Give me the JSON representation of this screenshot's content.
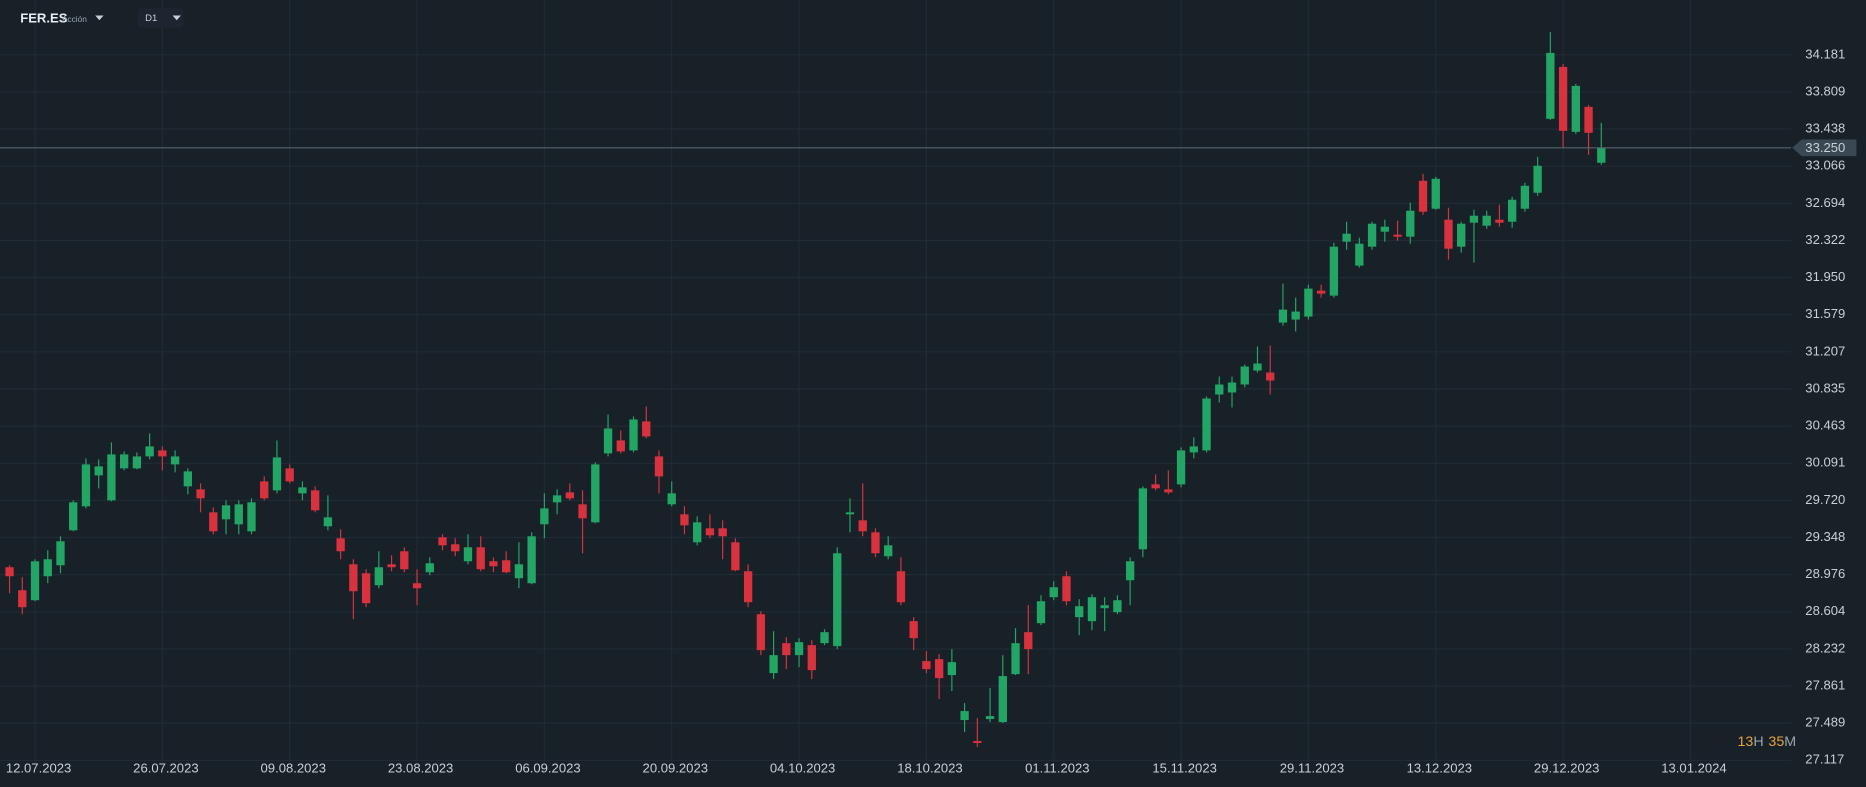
{
  "chart_data": {
    "type": "candlestick",
    "symbol": "FER.ES",
    "instrument_type": "Acción",
    "timeframe": "D1",
    "up_color": "#22a565",
    "down_color": "#d8323f",
    "grid": true,
    "open": [
      29.05,
      28.82,
      28.72,
      28.96,
      29.07,
      29.42,
      29.66,
      29.97,
      29.72,
      30.04,
      30.04,
      30.16,
      30.22,
      30.08,
      29.86,
      29.83,
      29.6,
      29.53,
      29.48,
      29.41,
      29.91,
      29.82,
      30.04,
      29.79,
      29.82,
      29.46,
      29.34,
      29.08,
      28.99,
      28.87,
      29.08,
      29.21,
      28.89,
      29.0,
      29.35,
      29.28,
      29.11,
      29.25,
      29.11,
      29.12,
      28.94,
      28.89,
      29.48,
      29.7,
      29.8,
      29.68,
      29.5,
      30.19,
      30.32,
      30.22,
      30.51,
      30.16,
      29.68,
      29.58,
      29.3,
      29.44,
      29.44,
      29.3,
      29.01,
      28.58,
      27.99,
      28.29,
      28.17,
      28.27,
      28.29,
      28.26,
      29.58,
      29.52,
      29.4,
      29.16,
      29.01,
      28.51,
      28.11,
      28.13,
      27.97,
      27.52,
      27.31,
      27.53,
      27.5,
      27.98,
      28.4,
      28.49,
      28.75,
      28.96,
      28.55,
      28.51,
      28.64,
      28.6,
      28.92,
      29.23,
      29.88,
      29.83,
      29.88,
      30.2,
      30.22,
      30.78,
      30.8,
      30.88,
      31.02,
      31.0,
      31.5,
      31.53,
      31.56,
      31.82,
      31.77,
      32.31,
      32.07,
      32.26,
      32.41,
      32.38,
      32.36,
      32.92,
      32.64,
      32.53,
      32.26,
      32.5,
      32.47,
      32.53,
      32.51,
      32.64,
      32.8,
      33.54,
      34.06,
      33.41,
      33.66,
      33.1
    ],
    "high": [
      29.07,
      28.95,
      29.13,
      29.22,
      29.36,
      29.72,
      30.14,
      30.13,
      30.3,
      30.21,
      30.2,
      30.39,
      30.26,
      30.22,
      30.04,
      29.89,
      29.65,
      29.72,
      29.72,
      29.74,
      29.96,
      30.32,
      30.08,
      29.91,
      29.86,
      29.77,
      29.43,
      29.13,
      29.03,
      29.21,
      29.17,
      29.25,
      29.03,
      29.15,
      29.38,
      29.34,
      29.38,
      29.36,
      29.15,
      29.21,
      29.3,
      29.4,
      29.79,
      29.83,
      29.89,
      29.82,
      30.1,
      30.58,
      30.42,
      30.56,
      30.66,
      30.22,
      29.91,
      29.66,
      29.56,
      29.58,
      29.52,
      29.34,
      29.08,
      28.61,
      28.41,
      28.35,
      28.34,
      28.32,
      28.43,
      29.25,
      29.74,
      29.89,
      29.44,
      29.36,
      29.15,
      28.55,
      28.21,
      28.18,
      28.23,
      27.69,
      27.54,
      27.84,
      28.17,
      28.44,
      28.67,
      28.77,
      28.91,
      29.01,
      28.73,
      28.78,
      28.75,
      28.77,
      29.15,
      29.86,
      29.98,
      30.02,
      30.25,
      30.35,
      30.76,
      30.96,
      30.96,
      31.08,
      31.26,
      31.27,
      31.89,
      31.75,
      31.88,
      31.88,
      32.3,
      32.51,
      32.35,
      32.51,
      32.53,
      32.52,
      32.7,
      32.99,
      32.96,
      32.65,
      32.51,
      32.63,
      32.62,
      32.68,
      32.76,
      32.9,
      33.16,
      34.41,
      34.09,
      33.89,
      33.68,
      33.5
    ],
    "low": [
      28.79,
      28.58,
      28.71,
      28.89,
      28.99,
      29.41,
      29.64,
      29.84,
      29.71,
      30.02,
      30.03,
      30.13,
      30.02,
      30.0,
      29.78,
      29.6,
      29.38,
      29.38,
      29.38,
      29.38,
      29.72,
      29.79,
      29.89,
      29.72,
      29.6,
      29.42,
      29.13,
      28.53,
      28.65,
      28.84,
      29.01,
      29.0,
      28.67,
      28.97,
      29.22,
      29.16,
      29.08,
      29.01,
      29.0,
      28.99,
      28.84,
      28.88,
      29.34,
      29.58,
      29.72,
      29.19,
      29.49,
      30.16,
      30.19,
      30.2,
      30.34,
      29.79,
      29.66,
      29.38,
      29.27,
      29.34,
      29.13,
      29.01,
      28.65,
      28.17,
      27.93,
      28.03,
      28.05,
      27.93,
      28.27,
      28.23,
      29.4,
      29.36,
      29.15,
      29.13,
      28.67,
      28.22,
      27.99,
      27.73,
      27.81,
      27.4,
      27.25,
      27.5,
      27.49,
      27.97,
      27.98,
      28.47,
      28.72,
      28.67,
      28.37,
      28.42,
      28.41,
      28.58,
      28.67,
      29.15,
      29.82,
      29.78,
      29.85,
      30.14,
      30.2,
      30.7,
      30.65,
      30.85,
      31.0,
      30.78,
      31.47,
      31.41,
      31.53,
      31.75,
      31.75,
      32.23,
      32.05,
      32.23,
      32.31,
      32.32,
      32.29,
      32.58,
      32.63,
      32.13,
      32.2,
      32.1,
      32.44,
      32.46,
      32.45,
      32.61,
      32.77,
      33.53,
      33.25,
      33.39,
      33.18,
      33.08
    ],
    "close": [
      28.96,
      28.65,
      29.11,
      29.13,
      29.31,
      29.7,
      30.08,
      30.06,
      30.18,
      30.18,
      30.16,
      30.26,
      30.16,
      30.16,
      30.01,
      29.74,
      29.41,
      29.67,
      29.68,
      29.7,
      29.74,
      30.15,
      29.91,
      29.85,
      29.62,
      29.55,
      29.21,
      28.81,
      28.69,
      29.05,
      29.05,
      29.03,
      28.84,
      29.09,
      29.27,
      29.21,
      29.25,
      29.03,
      29.06,
      29.0,
      29.08,
      29.36,
      29.64,
      29.77,
      29.74,
      29.54,
      30.08,
      30.44,
      30.21,
      30.53,
      30.36,
      29.96,
      29.79,
      29.47,
      29.5,
      29.37,
      29.36,
      29.02,
      28.7,
      28.22,
      28.17,
      28.17,
      28.3,
      28.02,
      28.4,
      29.19,
      29.6,
      29.41,
      29.19,
      29.27,
      28.7,
      28.34,
      28.03,
      27.94,
      28.1,
      27.61,
      27.29,
      27.56,
      27.96,
      28.29,
      28.23,
      28.71,
      28.85,
      28.71,
      28.66,
      28.75,
      28.67,
      28.72,
      29.11,
      29.84,
      29.84,
      29.8,
      30.22,
      30.26,
      30.74,
      30.88,
      30.9,
      31.06,
      31.09,
      30.92,
      31.63,
      31.61,
      31.84,
      31.79,
      32.26,
      32.39,
      32.29,
      32.49,
      32.46,
      32.36,
      32.62,
      32.61,
      32.94,
      32.24,
      32.49,
      32.57,
      32.57,
      32.5,
      32.73,
      32.87,
      33.07,
      34.2,
      33.42,
      33.87,
      33.4,
      33.25
    ],
    "ylim": [
      27.1,
      34.73
    ],
    "yticks": [
      34.181,
      33.809,
      33.438,
      33.066,
      32.694,
      32.322,
      {
        "value": 31.95,
        "label": "31.950"
      },
      31.579,
      31.207,
      30.835,
      30.463,
      30.091,
      {
        "value": 29.72,
        "label": "29.720"
      },
      29.348,
      28.976,
      28.604,
      28.232,
      27.861,
      27.489,
      27.117
    ],
    "xlim": [
      -0.75,
      139.9
    ],
    "xticks": [
      {
        "value": 2,
        "label": "12.07.2023"
      },
      {
        "value": 12,
        "label": "26.07.2023"
      },
      {
        "value": 22,
        "label": "09.08.2023"
      },
      {
        "value": 32,
        "label": "23.08.2023"
      },
      {
        "value": 42,
        "label": "06.09.2023"
      },
      {
        "value": 52,
        "label": "20.09.2023"
      },
      {
        "value": 62,
        "label": "04.10.2023"
      },
      {
        "value": 72,
        "label": "18.10.2023"
      },
      {
        "value": 82,
        "label": "01.11.2023"
      },
      {
        "value": 92,
        "label": "15.11.2023"
      },
      {
        "value": 102,
        "label": "29.11.2023"
      },
      {
        "value": 112,
        "label": "13.12.2023"
      },
      {
        "value": 122,
        "label": "29.12.2023"
      },
      {
        "value": 132,
        "label": "13.01.2024"
      }
    ],
    "current_price": {
      "value": 33.25,
      "label": "33.250"
    },
    "countdown": {
      "hours": "13",
      "hours_unit": "H",
      "minutes": "35",
      "minutes_unit": "M"
    }
  }
}
